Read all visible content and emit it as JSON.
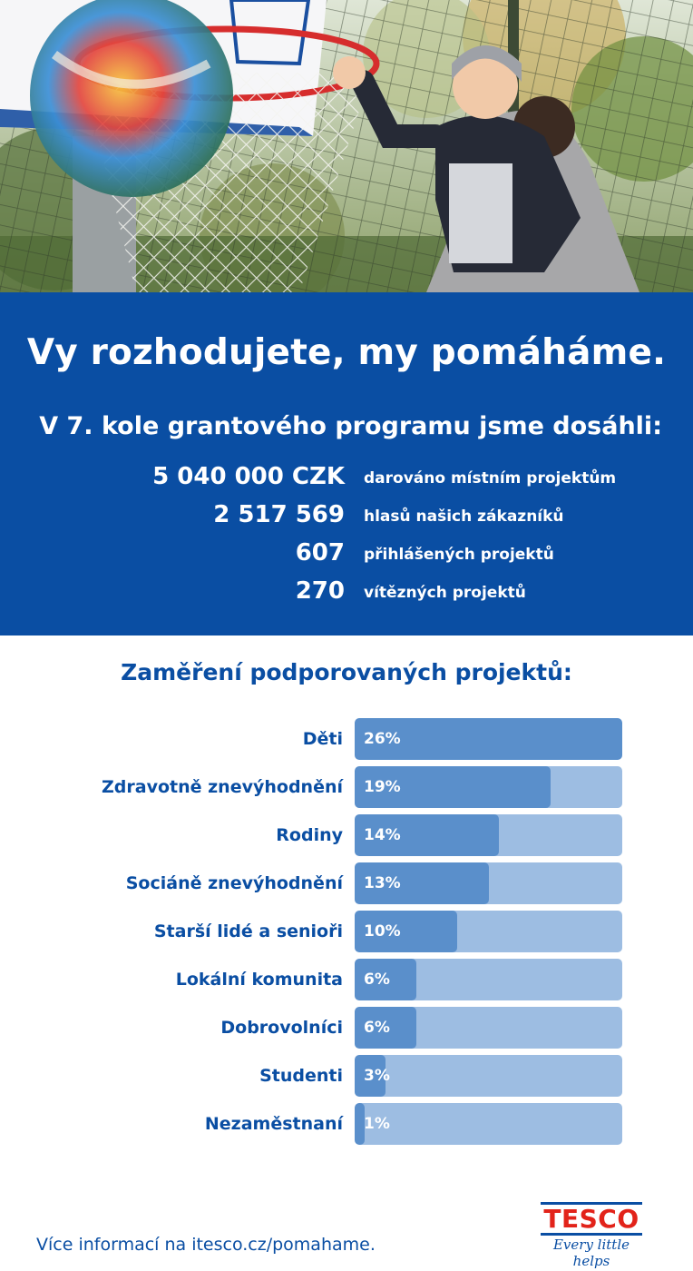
{
  "headline": "Vy rozhodujete, my pomáháme.",
  "subheadline": "V 7. kole grantového programu jsme dosáhli:",
  "stats": [
    {
      "value": "5 040 000 CZK",
      "label": "darováno místním projektům"
    },
    {
      "value": "2 517 569",
      "label": "hlasů našich zákazníků"
    },
    {
      "value": "607",
      "label": "přihlášených projektů"
    },
    {
      "value": "270",
      "label": "vítězných projektů"
    }
  ],
  "chart_data": {
    "type": "bar",
    "orientation": "horizontal",
    "title": "Zaměření podporovaných projektů:",
    "categories": [
      "Děti",
      "Zdravotně znevýhodnění",
      "Rodiny",
      "Sociáně znevýhodnění",
      "Starší lidé a senioři",
      "Lokální komunita",
      "Dobrovolníci",
      "Studenti",
      "Nezaměstnaní"
    ],
    "values": [
      26,
      19,
      14,
      13,
      10,
      6,
      6,
      3,
      1
    ],
    "value_labels": [
      "26%",
      "19%",
      "14%",
      "13%",
      "10%",
      "6%",
      "6%",
      "3%",
      "1%"
    ],
    "unit": "%",
    "xlim": [
      0,
      26
    ],
    "grid": false,
    "colors": {
      "fill": "#5a8fcb",
      "track": "#9dbde2"
    }
  },
  "footer": {
    "link_text": "Více informací na itesco.cz/pomahame."
  },
  "logo": {
    "brand": "TESCO",
    "tagline": "Every little helps"
  },
  "hero_image": {
    "icons": [
      "basketball-hoop",
      "ball",
      "child",
      "fence"
    ]
  },
  "colors": {
    "brand_blue": "#0a4ea3",
    "brand_red": "#e2231a"
  }
}
